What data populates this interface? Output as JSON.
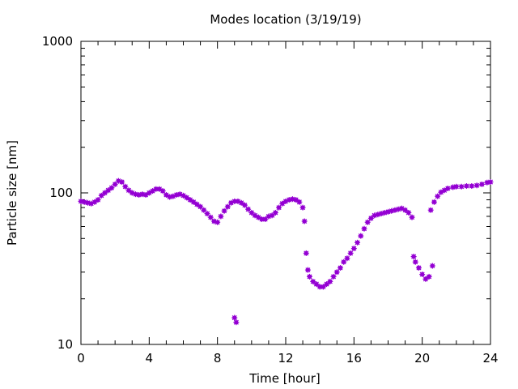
{
  "chart_data": {
    "type": "scatter",
    "title": "Modes location (3/19/19)",
    "xlabel": "Time [hour]",
    "ylabel": "Particle size [nm]",
    "xlim": [
      0,
      24
    ],
    "ylim": [
      10,
      1000
    ],
    "yscale": "log",
    "xticks": [
      0,
      4,
      8,
      12,
      16,
      20,
      24
    ],
    "xtick_labels": [
      "0",
      "4",
      "8",
      "12",
      "16",
      "20",
      "24"
    ],
    "yticks": [
      10,
      100,
      1000
    ],
    "ytick_labels": [
      "10",
      "100",
      "1000"
    ],
    "grid": false,
    "legend": "none",
    "marker_color": "#9400d3",
    "series": [
      {
        "points": [
          [
            0.0,
            88
          ],
          [
            0.2,
            87
          ],
          [
            0.4,
            86
          ],
          [
            0.6,
            85
          ],
          [
            0.8,
            87
          ],
          [
            1.0,
            90
          ],
          [
            1.2,
            96
          ],
          [
            1.4,
            100
          ],
          [
            1.6,
            104
          ],
          [
            1.8,
            108
          ],
          [
            2.0,
            114
          ],
          [
            2.2,
            120
          ],
          [
            2.4,
            118
          ],
          [
            2.6,
            110
          ],
          [
            2.8,
            104
          ],
          [
            3.0,
            100
          ],
          [
            3.2,
            98
          ],
          [
            3.4,
            97
          ],
          [
            3.6,
            98
          ],
          [
            3.8,
            97
          ],
          [
            4.0,
            100
          ],
          [
            4.2,
            103
          ],
          [
            4.4,
            106
          ],
          [
            4.6,
            106
          ],
          [
            4.8,
            103
          ],
          [
            5.0,
            97
          ],
          [
            5.2,
            94
          ],
          [
            5.4,
            95
          ],
          [
            5.6,
            97
          ],
          [
            5.8,
            98
          ],
          [
            6.0,
            96
          ],
          [
            6.2,
            93
          ],
          [
            6.4,
            90
          ],
          [
            6.6,
            87
          ],
          [
            6.8,
            84
          ],
          [
            7.0,
            81
          ],
          [
            7.2,
            77
          ],
          [
            7.4,
            73
          ],
          [
            7.6,
            69
          ],
          [
            7.8,
            65
          ],
          [
            8.0,
            64
          ],
          [
            8.2,
            70
          ],
          [
            8.4,
            76
          ],
          [
            8.6,
            81
          ],
          [
            8.8,
            86
          ],
          [
            9.0,
            88
          ],
          [
            9.2,
            88
          ],
          [
            9.4,
            86
          ],
          [
            9.6,
            83
          ],
          [
            9.8,
            78
          ],
          [
            10.0,
            74
          ],
          [
            10.2,
            71
          ],
          [
            10.4,
            69
          ],
          [
            10.6,
            67
          ],
          [
            10.8,
            67
          ],
          [
            11.0,
            70
          ],
          [
            11.2,
            71
          ],
          [
            11.4,
            74
          ],
          [
            11.6,
            80
          ],
          [
            11.8,
            85
          ],
          [
            12.0,
            88
          ],
          [
            12.2,
            90
          ],
          [
            12.4,
            91
          ],
          [
            12.6,
            90
          ],
          [
            12.8,
            87
          ],
          [
            13.0,
            80
          ],
          [
            13.1,
            65
          ],
          [
            13.2,
            40
          ],
          [
            13.3,
            31
          ],
          [
            13.4,
            28
          ],
          [
            13.6,
            26
          ],
          [
            13.8,
            25
          ],
          [
            14.0,
            24
          ],
          [
            14.2,
            24
          ],
          [
            14.4,
            25
          ],
          [
            14.6,
            26
          ],
          [
            14.8,
            28
          ],
          [
            15.0,
            30
          ],
          [
            15.2,
            32
          ],
          [
            15.4,
            35
          ],
          [
            15.6,
            37
          ],
          [
            15.8,
            40
          ],
          [
            16.0,
            43
          ],
          [
            16.2,
            47
          ],
          [
            16.4,
            52
          ],
          [
            16.6,
            58
          ],
          [
            16.8,
            64
          ],
          [
            17.0,
            68
          ],
          [
            17.2,
            71
          ],
          [
            17.4,
            72
          ],
          [
            17.6,
            73
          ],
          [
            17.8,
            74
          ],
          [
            18.0,
            75
          ],
          [
            18.2,
            76
          ],
          [
            18.4,
            77
          ],
          [
            18.6,
            78
          ],
          [
            18.8,
            79
          ],
          [
            19.0,
            77
          ],
          [
            19.2,
            74
          ],
          [
            19.4,
            69
          ],
          [
            19.5,
            38
          ],
          [
            19.6,
            35
          ],
          [
            19.8,
            32
          ],
          [
            20.0,
            29
          ],
          [
            20.2,
            27
          ],
          [
            20.4,
            28
          ],
          [
            20.5,
            77
          ],
          [
            20.6,
            33
          ],
          [
            20.7,
            87
          ],
          [
            20.9,
            95
          ],
          [
            21.1,
            101
          ],
          [
            21.3,
            104
          ],
          [
            21.5,
            107
          ],
          [
            21.8,
            109
          ],
          [
            22.0,
            110
          ],
          [
            22.3,
            110
          ],
          [
            22.6,
            111
          ],
          [
            22.9,
            111
          ],
          [
            23.2,
            112
          ],
          [
            23.5,
            114
          ],
          [
            23.8,
            117
          ],
          [
            24.0,
            118
          ],
          [
            9.0,
            15
          ],
          [
            9.1,
            14
          ]
        ]
      }
    ]
  }
}
